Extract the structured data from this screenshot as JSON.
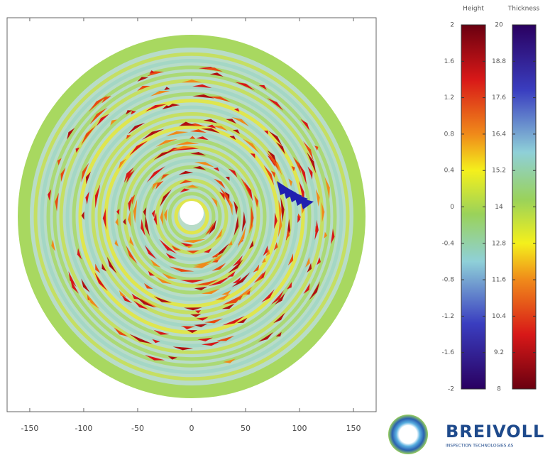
{
  "chart_data": {
    "type": "heatmap",
    "xlim": [
      -171,
      171
    ],
    "xticks": [
      -150,
      -100,
      -50,
      0,
      50,
      100,
      150
    ],
    "colorbars": [
      {
        "label": "Height",
        "lim": [
          -2,
          2
        ],
        "ticks": [
          2,
          1.6,
          1.2,
          0.8,
          0.4,
          0,
          -0.4,
          -0.8,
          -1.2,
          -1.6,
          -2
        ]
      },
      {
        "label": "Thickness",
        "lim": [
          8,
          20
        ],
        "ticks": [
          20,
          18.8,
          17.6,
          16.4,
          15.2,
          14,
          12.8,
          11.6,
          10.4,
          9.2,
          8
        ]
      }
    ]
  },
  "logo": {
    "name": "BREIVOLL",
    "tagline": "INSPECTION TECHNOLOGIES AS"
  }
}
